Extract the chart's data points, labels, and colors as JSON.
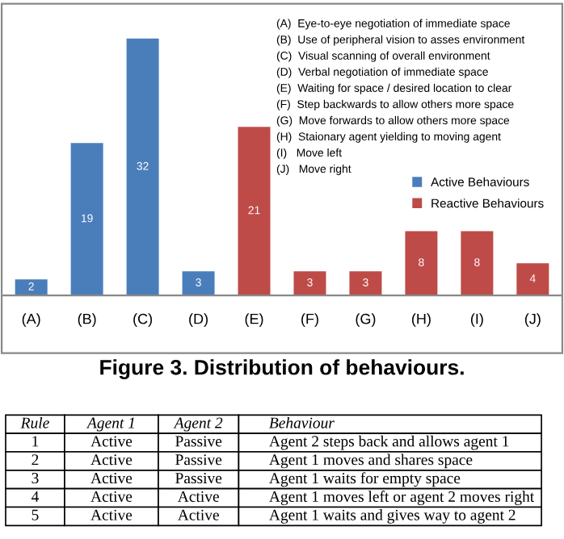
{
  "chart_data": {
    "type": "bar",
    "categories": [
      "(A)",
      "(B)",
      "(C)",
      "(D)",
      "(E)",
      "(F)",
      "(G)",
      "(H)",
      "(I)",
      "(J)"
    ],
    "series": [
      {
        "name": "Active Behaviours",
        "color": "#4a7ebb",
        "values": [
          2,
          19,
          32,
          3,
          null,
          null,
          null,
          null,
          null,
          null
        ]
      },
      {
        "name": "Reactive Behaviours",
        "color": "#be4b48",
        "values": [
          null,
          null,
          null,
          null,
          21,
          3,
          3,
          8,
          8,
          4
        ]
      }
    ],
    "data_labels": true,
    "legend": "right",
    "grid": false,
    "annotations": [
      "(A)  Eye-to-eye negotiation of immediate space",
      "(B)  Use of peripheral vision to asses environment",
      "(C)  Visual scanning of overall environment",
      "(D)  Verbal negotiation of immediate space",
      "(E)  Waiting for space / desired location to clear",
      "(F)  Step backwards to allow others more space",
      "(G)  Move forwards to allow others more space",
      "(H)  Staionary agent yielding to moving agent",
      "(I)   Move left",
      "(J)   Move right",
      "Figure 3. Distribution of behaviours.",
      "Rule",
      "Agent 1",
      "Agent 2",
      "Behaviour",
      "1",
      "Active",
      "Passive",
      "Agent 2 steps back and allows agent 1",
      "2",
      "Active",
      "Passive",
      "Agent 1 moves and shares space",
      "3",
      "Active",
      "Passive",
      "Agent 1 waits for empty space",
      "4",
      "Active",
      "Active",
      "Agent 1 moves left or agent 2 moves right",
      "5",
      "Active",
      "Active",
      "Agent 1 waits and gives way to agent 2"
    ]
  }
}
